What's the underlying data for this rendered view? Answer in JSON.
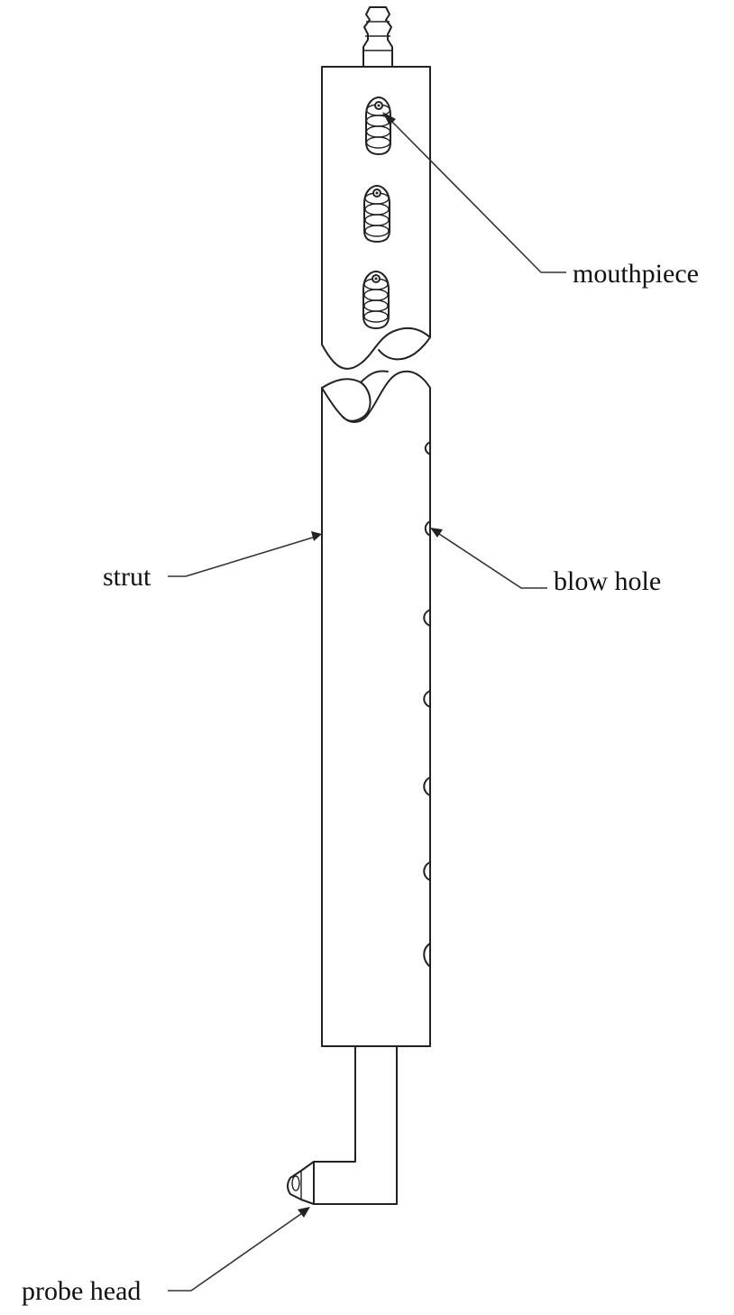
{
  "labels": {
    "mouthpiece": "mouthpiece",
    "strut": "strut",
    "blow_hole": "blow hole",
    "probe_head": "probe head"
  },
  "colors": {
    "stroke": "#222222",
    "background": "#ffffff"
  }
}
